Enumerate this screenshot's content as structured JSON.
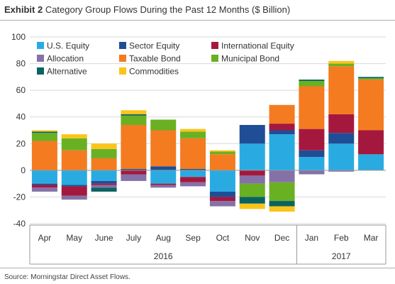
{
  "header": {
    "exhibit": "Exhibit 2",
    "title": "Category Group Flows During the Past 12 Months ($ Billion)"
  },
  "footer": {
    "source": "Source: Morningstar Direct Asset Flows."
  },
  "chart_data": {
    "type": "bar",
    "stacked": true,
    "title": "Category Group Flows During the Past 12 Months ($ Billion)",
    "categories": [
      "Apr",
      "May",
      "June",
      "July",
      "Aug",
      "Sep",
      "Oct",
      "Nov",
      "Dec",
      "Jan",
      "Feb",
      "Mar"
    ],
    "year_groups": [
      {
        "label": "2016",
        "categories": [
          "Apr",
          "May",
          "June",
          "July",
          "Aug",
          "Sep",
          "Oct",
          "Nov",
          "Dec"
        ]
      },
      {
        "label": "2017",
        "categories": [
          "Jan",
          "Feb",
          "Mar"
        ]
      }
    ],
    "ylim": [
      -40,
      100
    ],
    "yticks": [
      -40,
      -20,
      0,
      20,
      40,
      60,
      80,
      100
    ],
    "grid": true,
    "legend_position": "top-left",
    "series": [
      {
        "name": "U.S. Equity",
        "color": "#29abe2",
        "values": [
          -10,
          -11,
          -8,
          0,
          -10,
          -5,
          -16,
          20,
          27,
          10,
          20,
          12
        ]
      },
      {
        "name": "Sector Equity",
        "color": "#1f4e96",
        "values": [
          -1,
          -1,
          -2,
          1,
          3,
          1,
          -4,
          14,
          3,
          5,
          8,
          0
        ]
      },
      {
        "name": "International Equity",
        "color": "#a5183d",
        "values": [
          -2,
          -7,
          -1,
          -3,
          -1,
          -4,
          -3,
          -4,
          5,
          16,
          14,
          18
        ]
      },
      {
        "name": "Allocation",
        "color": "#8571a7",
        "values": [
          -3,
          -3,
          -2,
          -5,
          -2,
          -3,
          -4,
          -6,
          -9,
          -3,
          -1,
          0
        ]
      },
      {
        "name": "Taxable Bond",
        "color": "#f47b20",
        "values": [
          22,
          15,
          9,
          33,
          27,
          23,
          12,
          0,
          14,
          32,
          36,
          38
        ]
      },
      {
        "name": "Municipal Bond",
        "color": "#6ab023",
        "values": [
          6,
          9,
          7,
          7,
          8,
          5,
          2,
          -10,
          -14,
          4,
          2,
          1
        ]
      },
      {
        "name": "Alternative",
        "color": "#0b6262",
        "values": [
          1,
          0,
          -3,
          1,
          0,
          0,
          0,
          -5,
          -4,
          1,
          0,
          1
        ]
      },
      {
        "name": "Commodities",
        "color": "#fcc419",
        "values": [
          1,
          3,
          4,
          3,
          0,
          2,
          1,
          -4,
          -4,
          0,
          2,
          0
        ]
      }
    ]
  }
}
